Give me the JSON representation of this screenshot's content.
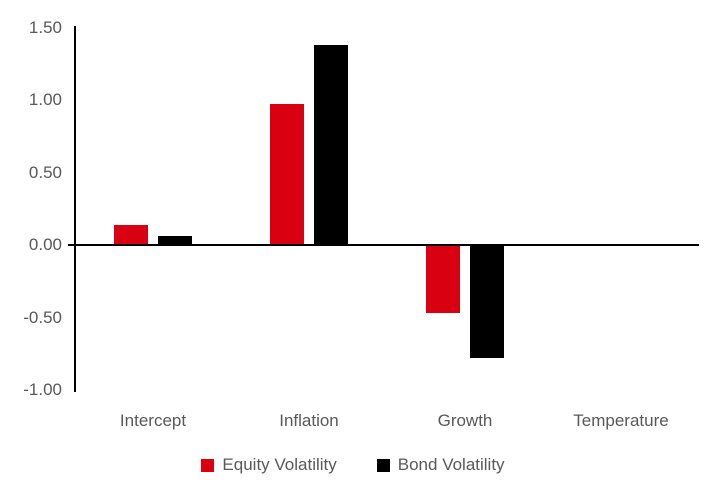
{
  "chart_data": {
    "type": "bar",
    "title": "",
    "xlabel": "",
    "ylabel": "",
    "categories": [
      "Intercept",
      "Inflation",
      "Growth",
      "Temperature"
    ],
    "series": [
      {
        "name": "Equity Volatility",
        "color": "#d90012",
        "values": [
          0.14,
          0.97,
          -0.47,
          0.01
        ]
      },
      {
        "name": "Bond Volatility",
        "color": "#000000",
        "values": [
          0.06,
          1.38,
          -0.78,
          0.01
        ]
      }
    ],
    "ylim": [
      -1.0,
      1.5
    ],
    "yticks": [
      {
        "value": 1.5,
        "label": "1.50"
      },
      {
        "value": 1.0,
        "label": "1.00"
      },
      {
        "value": 0.5,
        "label": "0.50"
      },
      {
        "value": 0.0,
        "label": "0.00"
      },
      {
        "value": -0.5,
        "label": "-0.50"
      },
      {
        "value": -1.0,
        "label": "-1.00"
      }
    ],
    "grid": "off",
    "legend_position": "bottom",
    "background_color": "#ffffff",
    "axis_color": "#000000",
    "tick_label_color": "#595959",
    "category_label_color": "#595959",
    "legend_label_color": "#595959"
  }
}
